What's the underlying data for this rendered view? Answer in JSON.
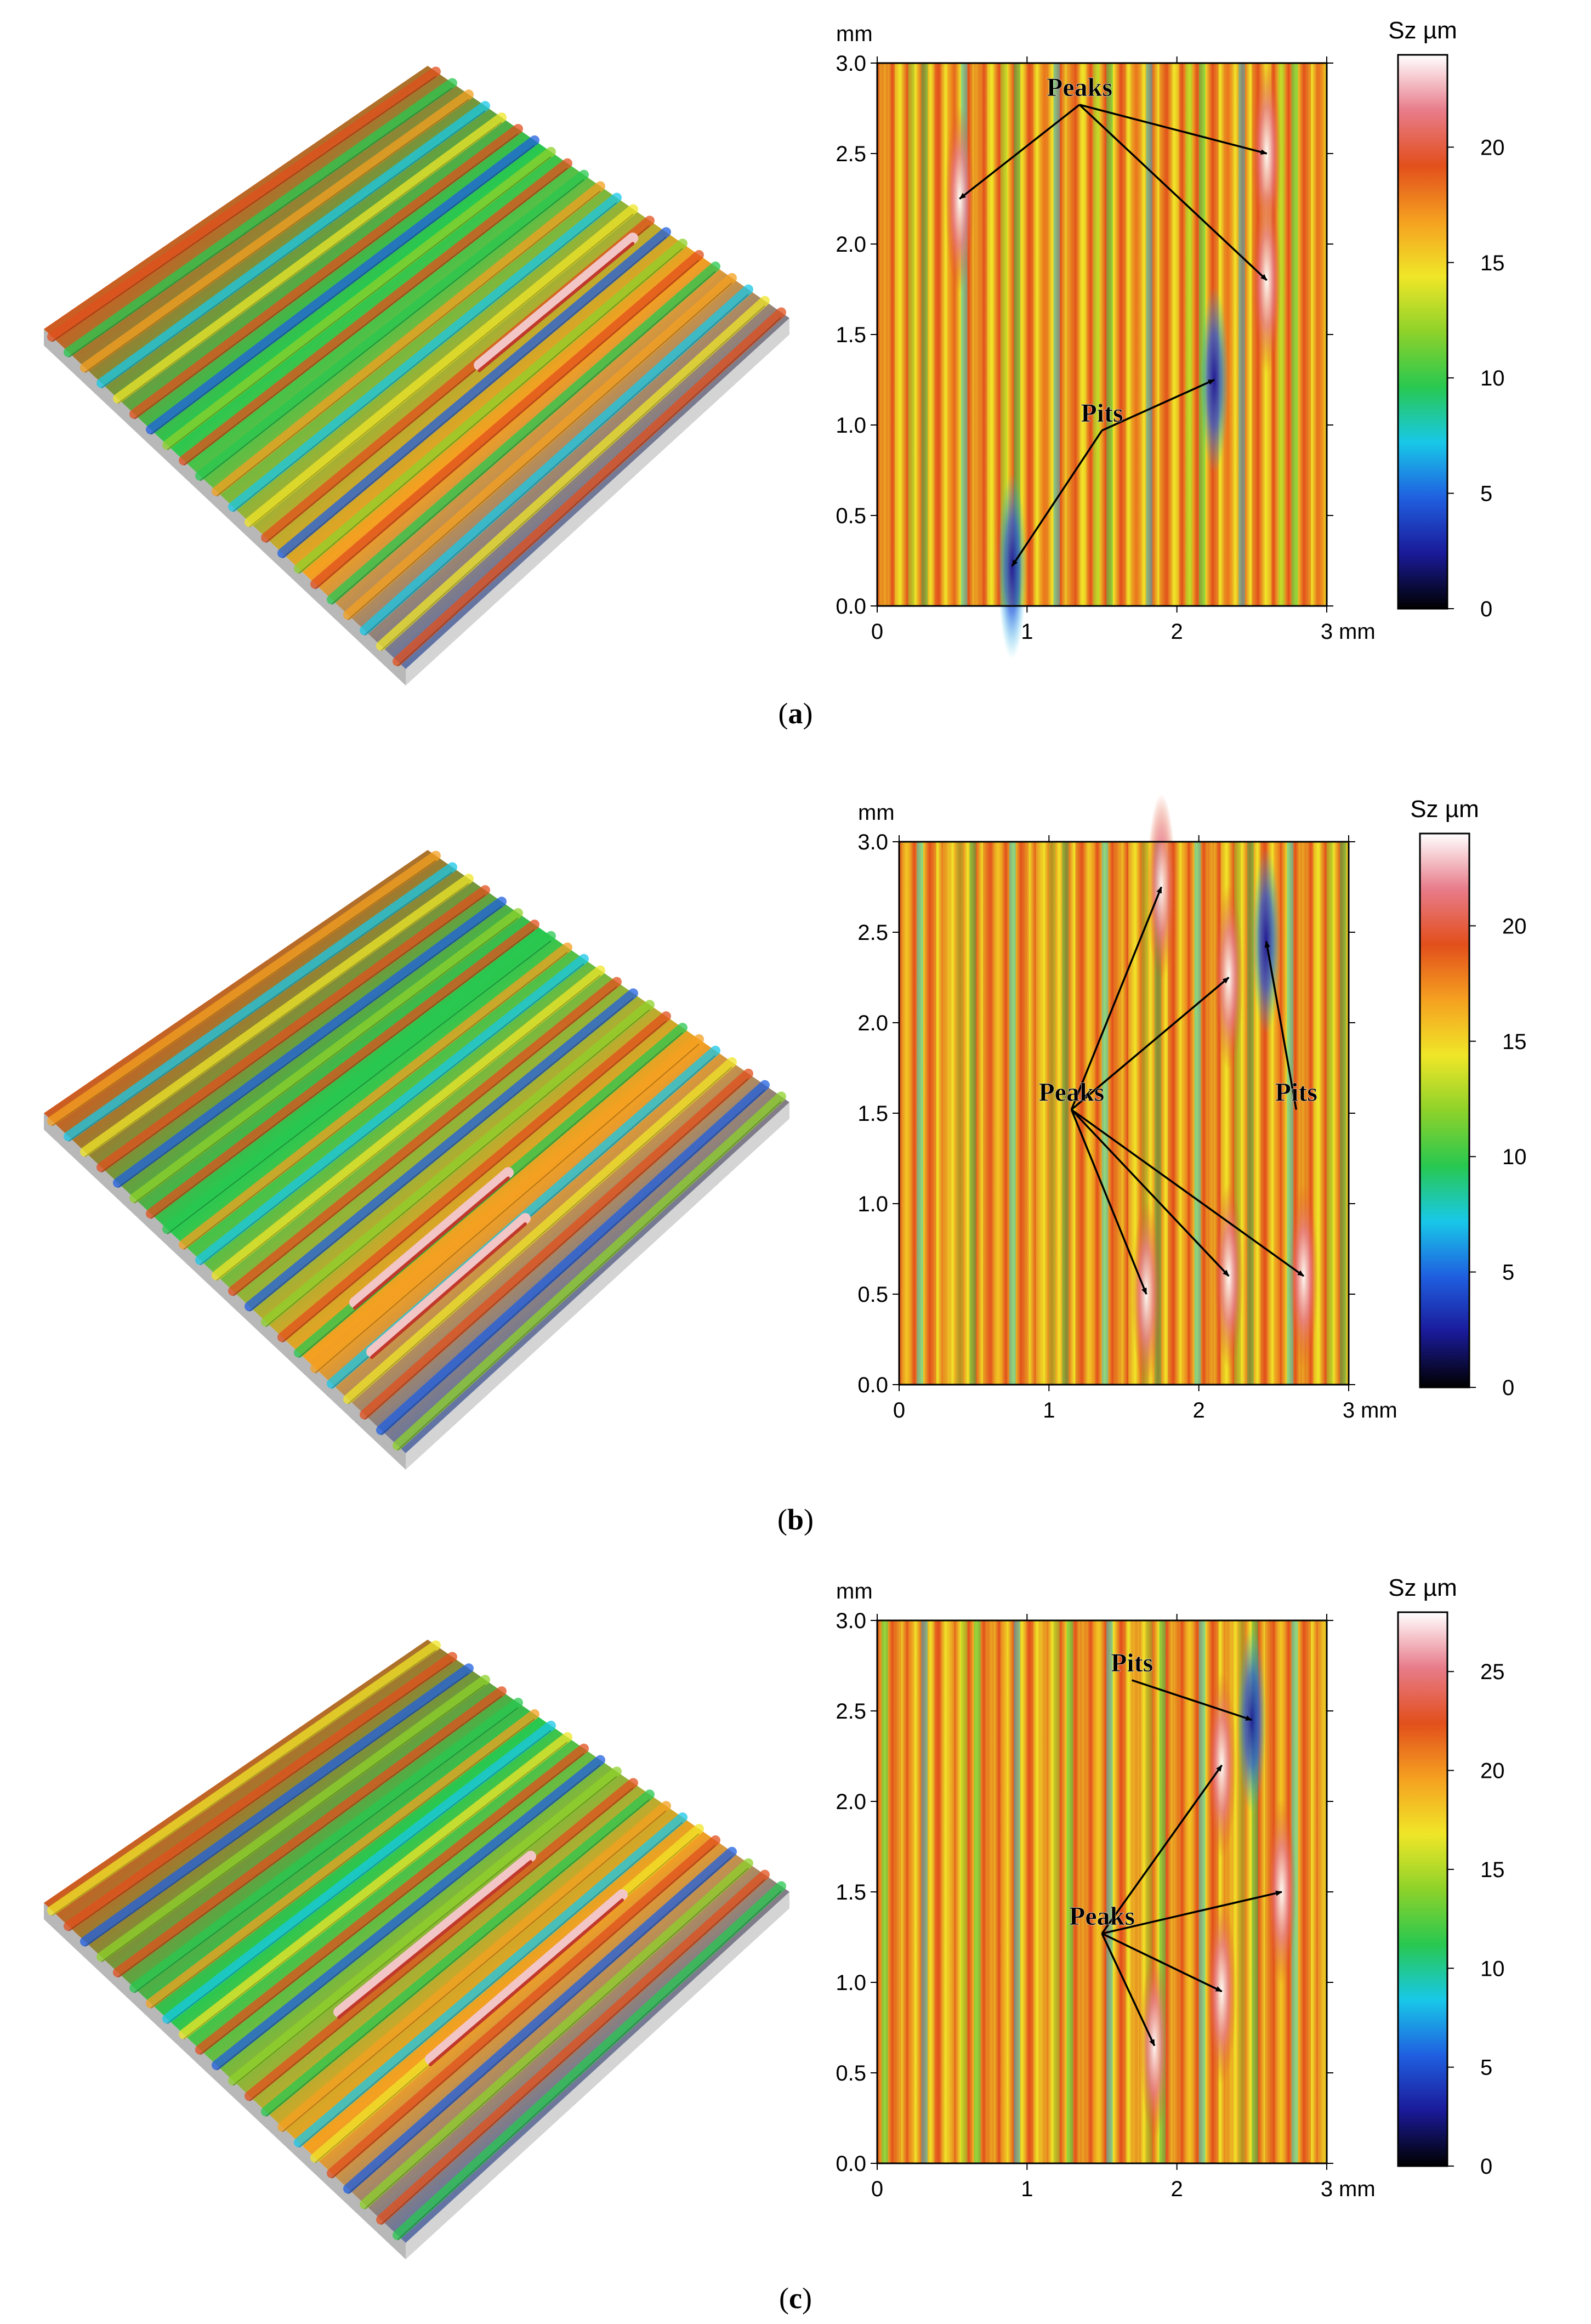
{
  "figure": {
    "panels": [
      {
        "id": "a",
        "caption_letter": "a",
        "map": {
          "y_unit": "mm",
          "x_unit": "mm",
          "x_ticks": [
            "0",
            "1",
            "2",
            "3"
          ],
          "y_ticks": [
            "0.0",
            "0.5",
            "1.0",
            "1.5",
            "2.0",
            "2.5",
            "3.0"
          ],
          "colorbar_label": "Sz µm",
          "colorbar_ticks": [
            "0",
            "5",
            "10",
            "15",
            "20"
          ],
          "colorbar_max": 24,
          "annotations": [
            {
              "label": "Peaks",
              "anchor": [
                1.35,
                2.8
              ],
              "targets": [
                [
                  0.55,
                  2.25
                ],
                [
                  2.6,
                  2.5
                ],
                [
                  2.6,
                  1.8
                ]
              ]
            },
            {
              "label": "Pits",
              "anchor": [
                1.5,
                1.0
              ],
              "targets": [
                [
                  2.25,
                  1.25
                ],
                [
                  0.9,
                  0.22
                ]
              ]
            }
          ]
        }
      },
      {
        "id": "b",
        "caption_letter": "b",
        "map": {
          "y_unit": "mm",
          "x_unit": "mm",
          "x_ticks": [
            "0",
            "1",
            "2",
            "3"
          ],
          "y_ticks": [
            "0.0",
            "0.5",
            "1.0",
            "1.5",
            "2.0",
            "2.5",
            "3.0"
          ],
          "colorbar_label": "Sz µm",
          "colorbar_ticks": [
            "0",
            "5",
            "10",
            "15",
            "20"
          ],
          "colorbar_max": 24,
          "annotations": [
            {
              "label": "Peaks",
              "anchor": [
                1.15,
                1.55
              ],
              "targets": [
                [
                  1.75,
                  2.75
                ],
                [
                  2.2,
                  2.25
                ],
                [
                  1.65,
                  0.5
                ],
                [
                  2.2,
                  0.6
                ],
                [
                  2.7,
                  0.6
                ]
              ]
            },
            {
              "label": "Pits",
              "anchor": [
                2.65,
                1.55
              ],
              "targets": [
                [
                  2.45,
                  2.45
                ]
              ]
            }
          ]
        }
      },
      {
        "id": "c",
        "caption_letter": "c",
        "map": {
          "y_unit": "mm",
          "x_unit": "mm",
          "x_ticks": [
            "0",
            "1",
            "2",
            "3"
          ],
          "y_ticks": [
            "0.0",
            "0.5",
            "1.0",
            "1.5",
            "2.0",
            "2.5",
            "3.0"
          ],
          "colorbar_label": "Sz µm",
          "colorbar_ticks": [
            "0",
            "5",
            "10",
            "15",
            "20",
            "25"
          ],
          "colorbar_max": 28,
          "annotations": [
            {
              "label": "Pits",
              "anchor": [
                1.7,
                2.7
              ],
              "targets": [
                [
                  2.5,
                  2.45
                ]
              ]
            },
            {
              "label": "Peaks",
              "anchor": [
                1.5,
                1.3
              ],
              "targets": [
                [
                  2.3,
                  2.2
                ],
                [
                  2.7,
                  1.5
                ],
                [
                  2.3,
                  0.95
                ],
                [
                  1.85,
                  0.65
                ]
              ]
            }
          ]
        }
      }
    ]
  },
  "colors": {
    "scale": [
      "#000000",
      "#1a1a99",
      "#1f5fe0",
      "#18c8e8",
      "#28c850",
      "#8ed22a",
      "#f0e628",
      "#f5a020",
      "#e24f1c",
      "#e87c8a",
      "#ffffff"
    ],
    "axis": "#000000",
    "side": "#b8b8b8"
  }
}
